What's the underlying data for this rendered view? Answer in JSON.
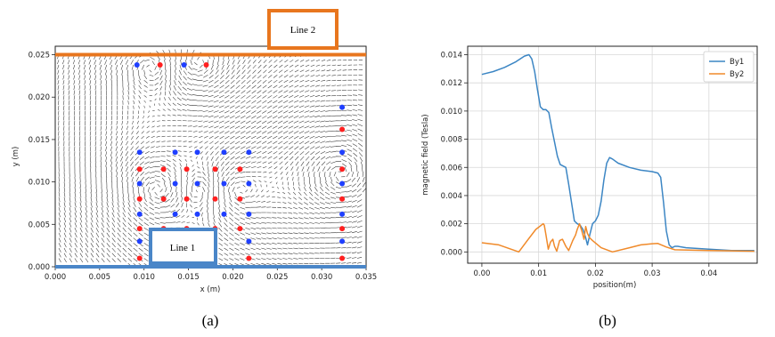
{
  "captions": {
    "a": "(a)",
    "b": "(b)"
  },
  "chart_data": [
    {
      "type": "vector-field",
      "xlabel": "x (m)",
      "ylabel": "y (m)",
      "xlim": [
        0.0,
        0.035
      ],
      "ylim": [
        0.0,
        0.026
      ],
      "xticks": [
        "0.000",
        "0.005",
        "0.010",
        "0.015",
        "0.020",
        "0.025",
        "0.030",
        "0.035"
      ],
      "yticks": [
        "0.000",
        "0.005",
        "0.010",
        "0.015",
        "0.020",
        "0.025"
      ],
      "annotations": [
        {
          "label": "Line 1",
          "y": 0.0,
          "color": "#4a86c8"
        },
        {
          "label": "Line 2",
          "y": 0.025,
          "color": "#e8761e"
        }
      ],
      "blue_points": [
        [
          0.0092,
          0.0238
        ],
        [
          0.0145,
          0.0238
        ],
        [
          0.0095,
          0.0135
        ],
        [
          0.0095,
          0.0098
        ],
        [
          0.0095,
          0.0062
        ],
        [
          0.0095,
          0.003
        ],
        [
          0.0135,
          0.0135
        ],
        [
          0.0135,
          0.0098
        ],
        [
          0.0135,
          0.0062
        ],
        [
          0.016,
          0.0135
        ],
        [
          0.016,
          0.0098
        ],
        [
          0.016,
          0.0062
        ],
        [
          0.019,
          0.0135
        ],
        [
          0.019,
          0.0098
        ],
        [
          0.019,
          0.0062
        ],
        [
          0.0218,
          0.0135
        ],
        [
          0.0218,
          0.0098
        ],
        [
          0.0218,
          0.0062
        ],
        [
          0.0218,
          0.003
        ],
        [
          0.0323,
          0.0188
        ],
        [
          0.0323,
          0.0135
        ],
        [
          0.0323,
          0.0098
        ],
        [
          0.0323,
          0.0062
        ],
        [
          0.0323,
          0.003
        ]
      ],
      "red_points": [
        [
          0.0118,
          0.0238
        ],
        [
          0.017,
          0.0238
        ],
        [
          0.0095,
          0.0115
        ],
        [
          0.0095,
          0.008
        ],
        [
          0.0095,
          0.0045
        ],
        [
          0.0095,
          0.001
        ],
        [
          0.0122,
          0.0115
        ],
        [
          0.0122,
          0.008
        ],
        [
          0.0122,
          0.0045
        ],
        [
          0.0148,
          0.0115
        ],
        [
          0.0148,
          0.008
        ],
        [
          0.0148,
          0.0045
        ],
        [
          0.018,
          0.0115
        ],
        [
          0.018,
          0.008
        ],
        [
          0.018,
          0.0045
        ],
        [
          0.0208,
          0.0115
        ],
        [
          0.0208,
          0.008
        ],
        [
          0.0208,
          0.0045
        ],
        [
          0.0218,
          0.001
        ],
        [
          0.0323,
          0.0162
        ],
        [
          0.0323,
          0.0115
        ],
        [
          0.0323,
          0.008
        ],
        [
          0.0323,
          0.0045
        ],
        [
          0.0323,
          0.001
        ]
      ],
      "colors": {
        "blue": "#1f3fff",
        "red": "#ff2020"
      }
    },
    {
      "type": "line",
      "xlabel": "position(m)",
      "ylabel": "magnetic field (Tesla)",
      "xlim": [
        -0.0025,
        0.0485
      ],
      "ylim": [
        -0.0008,
        0.0146
      ],
      "xticks": [
        "0.00",
        "0.01",
        "0.02",
        "0.03",
        "0.04"
      ],
      "yticks": [
        "0.000",
        "0.002",
        "0.004",
        "0.006",
        "0.008",
        "0.010",
        "0.012",
        "0.014"
      ],
      "grid": true,
      "legend": "top-right",
      "series": [
        {
          "name": "By1",
          "color": "#3c86c4",
          "x": [
            0.0,
            0.002,
            0.004,
            0.006,
            0.0075,
            0.0083,
            0.0088,
            0.0093,
            0.0098,
            0.0103,
            0.0108,
            0.0113,
            0.0118,
            0.0123,
            0.0128,
            0.0133,
            0.0138,
            0.0143,
            0.0148,
            0.0153,
            0.0158,
            0.0163,
            0.0168,
            0.0173,
            0.0178,
            0.0183,
            0.0186,
            0.019,
            0.0195,
            0.02,
            0.0205,
            0.021,
            0.0215,
            0.022,
            0.0225,
            0.023,
            0.024,
            0.026,
            0.028,
            0.03,
            0.031,
            0.0315,
            0.032,
            0.0325,
            0.033,
            0.0335,
            0.034,
            0.0345,
            0.036,
            0.04,
            0.044,
            0.048
          ],
          "values": [
            0.0126,
            0.0128,
            0.0131,
            0.0135,
            0.0139,
            0.014,
            0.0137,
            0.0128,
            0.0115,
            0.0103,
            0.0101,
            0.0101,
            0.0099,
            0.0088,
            0.0078,
            0.0068,
            0.0062,
            0.0061,
            0.006,
            0.0048,
            0.0035,
            0.0022,
            0.002,
            0.0019,
            0.0016,
            0.001,
            0.0005,
            0.0012,
            0.002,
            0.0022,
            0.0026,
            0.0036,
            0.0051,
            0.0063,
            0.0067,
            0.0066,
            0.0063,
            0.006,
            0.0058,
            0.0057,
            0.0056,
            0.0053,
            0.0035,
            0.0015,
            0.0005,
            0.0003,
            0.0004,
            0.0004,
            0.0003,
            0.0002,
            0.0001,
            0.0001
          ]
        },
        {
          "name": "By2",
          "color": "#f08a2a",
          "x": [
            0.0,
            0.003,
            0.0065,
            0.008,
            0.0095,
            0.0108,
            0.011,
            0.0113,
            0.0117,
            0.0121,
            0.0125,
            0.0128,
            0.0132,
            0.0137,
            0.0142,
            0.0148,
            0.0153,
            0.0157,
            0.016,
            0.0165,
            0.0168,
            0.0172,
            0.0176,
            0.018,
            0.0183,
            0.0186,
            0.019,
            0.0195,
            0.021,
            0.023,
            0.026,
            0.028,
            0.03,
            0.031,
            0.0325,
            0.034,
            0.04,
            0.048
          ],
          "values": [
            0.00065,
            0.0005,
            0.0,
            0.0008,
            0.0016,
            0.002,
            0.0019,
            0.0012,
            0.0002,
            0.0007,
            0.0009,
            0.0004,
            5e-05,
            0.0008,
            0.0009,
            0.0004,
            0.0001,
            0.0005,
            0.0008,
            0.0012,
            0.0016,
            0.002,
            0.0015,
            0.0009,
            0.0018,
            0.0013,
            0.001,
            0.0008,
            0.0003,
            0.0,
            0.0003,
            0.0005,
            0.00058,
            0.0006,
            0.00035,
            0.00015,
            0.0001,
            5e-05
          ]
        }
      ]
    }
  ]
}
